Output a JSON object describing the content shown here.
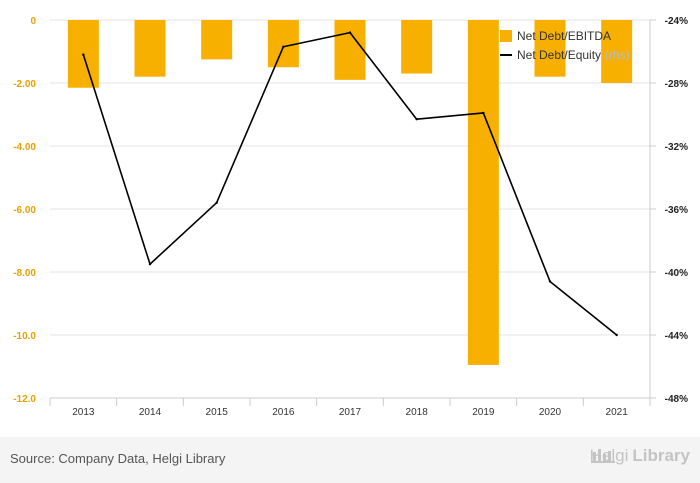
{
  "chart_data": {
    "type": "bar",
    "categories": [
      "2013",
      "2014",
      "2015",
      "2016",
      "2017",
      "2018",
      "2019",
      "2020",
      "2021"
    ],
    "series": [
      {
        "name": "Net Debt/EBITDA",
        "type": "bar",
        "axis": "left",
        "color": "#f7b000",
        "values": [
          -2.15,
          -1.8,
          -1.25,
          -1.5,
          -1.9,
          -1.7,
          -10.95,
          -1.8,
          -2.0
        ]
      },
      {
        "name": "Net Debt/Equity",
        "name_suffix": "(rhs)",
        "type": "line",
        "axis": "right",
        "color": "#000000",
        "values": [
          -26.2,
          -39.5,
          -35.6,
          -25.7,
          -24.8,
          -30.3,
          -29.9,
          -40.6,
          -44.0
        ]
      }
    ],
    "left_axis": {
      "min": -12,
      "max": 0,
      "ticks": [
        "0",
        "-2.00",
        "-4.00",
        "-6.00",
        "-8.00",
        "-10.0",
        "-12.0"
      ],
      "tick_values": [
        0,
        -2,
        -4,
        -6,
        -8,
        -10,
        -12
      ]
    },
    "right_axis": {
      "min": -48,
      "max": -24,
      "ticks": [
        "-24%",
        "-28%",
        "-32%",
        "-36%",
        "-40%",
        "-44%",
        "-48%"
      ],
      "tick_values": [
        -24,
        -28,
        -32,
        -36,
        -40,
        -44,
        -48
      ]
    },
    "grid": true,
    "legend_position": "top-right"
  },
  "footer": {
    "source": "Source: Company Data, Helgi Library",
    "brand_part1": "Helgi",
    "brand_part2": "Library"
  }
}
